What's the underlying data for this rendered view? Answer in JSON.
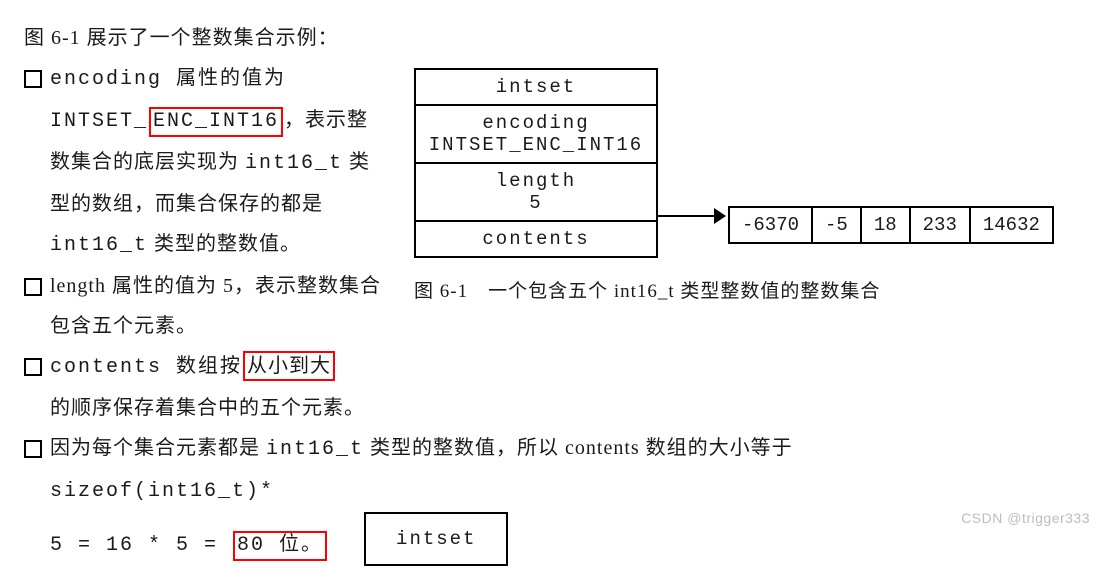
{
  "intro": "图 6-1 展示了一个整数集合示例：",
  "bullets": {
    "b1_pre": "encoding 属性的值为 ",
    "b1_code1": "INTSET_",
    "b1_hl": "ENC_INT16",
    "b1_post1": "，表示整数集合的底层实现为 ",
    "b1_code2": "int16_t",
    "b1_post2": " 类型的数组，而集合保存的都是 ",
    "b1_code3": "int16_t",
    "b1_post3": " 类型的整数值。",
    "b2_pre": "length 属性的值为 5，表示整数集合包含五个元素。",
    "b3_pre": "contents 数组按",
    "b3_hl": "从小到大",
    "b3_post": "的顺序保存着集合中的五个元素。",
    "b4_pre": "因为每个集合元素都是 ",
    "b4_code1": "int16_t",
    "b4_mid": " 类型的整数值，所以 contents 数组的大小等于",
    "b4_expr1": "sizeof(int16_t)*",
    "b4_expr2_pre": "5 = 16 * 5 = ",
    "b4_hl": "80 位。"
  },
  "diagram": {
    "cells": {
      "c1": "intset",
      "c2a": "encoding",
      "c2b": "INTSET_ENC_INT16",
      "c3a": "length",
      "c3b": "5",
      "c4": "contents"
    },
    "array": [
      "-6370",
      "-5",
      "18",
      "233",
      "14632"
    ],
    "caption": "图 6-1　一个包含五个 int16_t 类型整数值的整数集合"
  },
  "smallbox": "intset",
  "watermark": "CSDN @trigger333"
}
